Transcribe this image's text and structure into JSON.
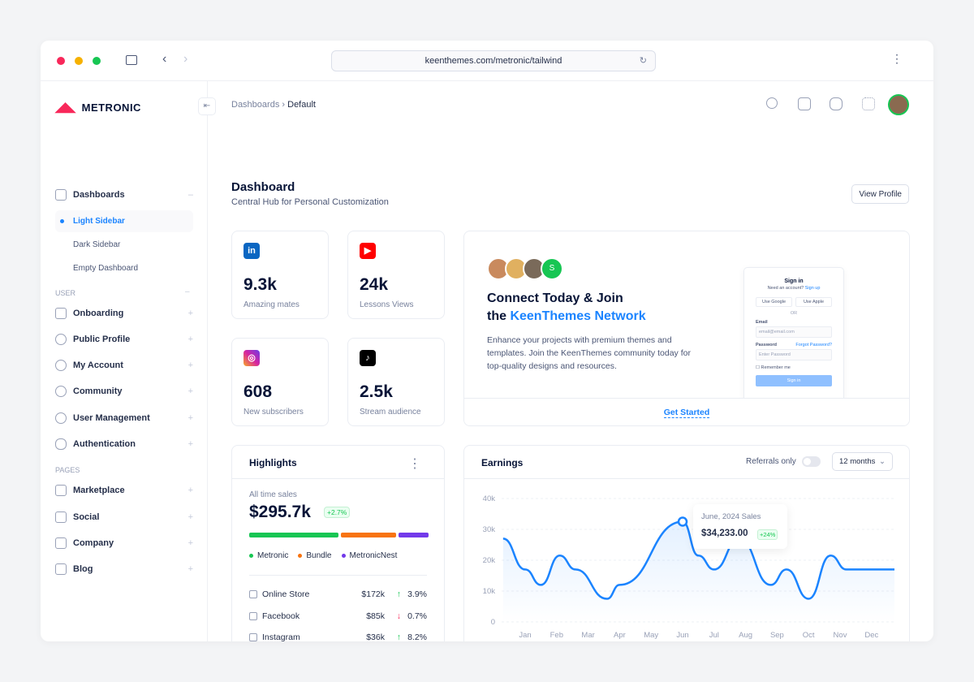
{
  "browser": {
    "url": "keenthemes.com/metronic/tailwind"
  },
  "sidebar": {
    "brand": "METRONIC",
    "dashboards": "Dashboards",
    "sub_items": [
      "Light Sidebar",
      "Dark Sidebar",
      "Empty Dashboard"
    ],
    "section_user": "USER",
    "user_items": [
      "Onboarding",
      "Public Profile",
      "My Account",
      "Community",
      "User Management",
      "Authentication"
    ],
    "section_pages": "PAGES",
    "page_items": [
      "Marketplace",
      "Social",
      "Company",
      "Blog"
    ]
  },
  "header": {
    "breadcrumb": [
      "Dashboards",
      "Default"
    ]
  },
  "page": {
    "title": "Dashboard",
    "subtitle": "Central Hub for Personal Customization",
    "view_profile": "View Profile"
  },
  "stats": [
    {
      "value": "9.3k",
      "label": "Amazing mates",
      "icon": "linkedin-icon",
      "color": "#0a66c2"
    },
    {
      "value": "24k",
      "label": "Lessons Views",
      "icon": "youtube-icon",
      "color": "#ff0000"
    },
    {
      "value": "608",
      "label": "New subscribers",
      "icon": "instagram-icon",
      "color": "#d6249f"
    },
    {
      "value": "2.5k",
      "label": "Stream audience",
      "icon": "tiktok-icon",
      "color": "#000000"
    }
  ],
  "promo": {
    "avatar_letter": "S",
    "title1": "Connect Today & Join",
    "title2_prefix": "the ",
    "title2_highlight": "KeenThemes Network",
    "text": "Enhance your projects with premium themes and templates. Join the KeenThemes community today for top-quality designs and resources.",
    "cta": "Get Started",
    "signin": {
      "title": "Sign in",
      "need": "Need an account?",
      "signup": "Sign up",
      "google": "Use Google",
      "apple": "Use Apple",
      "or": "OR",
      "email": "Email",
      "email_ph": "email@email.com",
      "password": "Password",
      "forgot": "Forgot Password?",
      "password_ph": "Enter Password",
      "remember": "Remember me",
      "submit": "Sign in"
    }
  },
  "highlights": {
    "title": "Highlights",
    "all_time": "All time sales",
    "total": "$295.7k",
    "change": "+2.7%",
    "legend": [
      {
        "name": "Metronic",
        "color": "#17c653",
        "share": 45
      },
      {
        "name": "Bundle",
        "color": "#f8730f",
        "share": 28
      },
      {
        "name": "MetronicNest",
        "color": "#7239ea",
        "share": 15
      }
    ],
    "rows": [
      {
        "name": "Online Store",
        "amount": "$172k",
        "change": "3.9%",
        "dir": "up"
      },
      {
        "name": "Facebook",
        "amount": "$85k",
        "change": "0.7%",
        "dir": "down"
      },
      {
        "name": "Instagram",
        "amount": "$36k",
        "change": "8.2%",
        "dir": "up"
      }
    ]
  },
  "earnings": {
    "title": "Earnings",
    "referrals": "Referrals only",
    "referrals_on": false,
    "period": "12 months",
    "tooltip": {
      "title": "June, 2024 Sales",
      "value": "$34,233.00",
      "change": "+24%"
    }
  },
  "chart_data": {
    "type": "area",
    "categories": [
      "Jan",
      "Feb",
      "Mar",
      "Apr",
      "May",
      "Jun",
      "Jul",
      "Aug",
      "Sep",
      "Oct",
      "Nov",
      "Dec"
    ],
    "y_ticks": [
      "0",
      "10k",
      "20k",
      "30k",
      "40k"
    ],
    "ylim": [
      0,
      40000
    ],
    "grid": true,
    "color": "#1b84ff",
    "x": [
      -0.7,
      0,
      0.5,
      1.1,
      1.6,
      2.6,
      3.0,
      5.0,
      5.5,
      6.0,
      6.8,
      7.8,
      8.3,
      9.0,
      9.7,
      10.2,
      11.0
    ],
    "y": [
      27000,
      17000,
      12000,
      21500,
      17000,
      7500,
      12000,
      32500,
      21500,
      17000,
      27000,
      12000,
      17000,
      7500,
      21500,
      17000,
      17000
    ],
    "highlight_index": 7
  }
}
